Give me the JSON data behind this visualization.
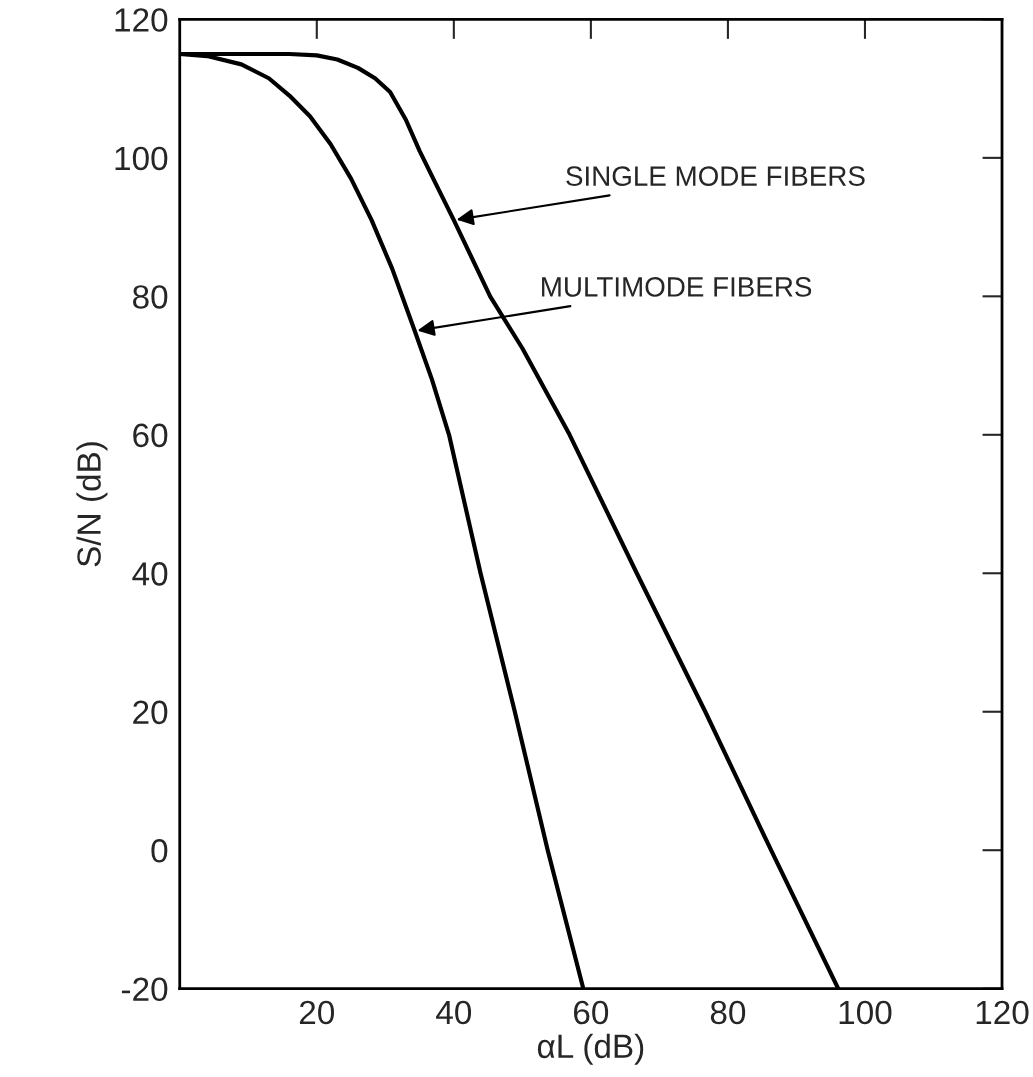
{
  "chart_data": {
    "type": "line",
    "xlabel": "αL (dB)",
    "ylabel": "S/N (dB)",
    "xlim": [
      0,
      120
    ],
    "xticks": [
      20,
      40,
      60,
      80,
      100,
      120
    ],
    "ylim": [
      -20,
      120
    ],
    "yticks": [
      -20,
      0,
      20,
      40,
      60,
      80,
      100,
      120
    ],
    "grid": false,
    "legend": false,
    "marker": "none",
    "line_style": "solid",
    "series": [
      {
        "color": "#000000",
        "x": [
          0,
          10,
          16,
          20,
          23,
          26,
          28.5,
          30.7,
          33,
          35,
          37.5,
          40,
          45.3,
          50,
          56.9,
          66.7,
          76.7,
          86.3,
          96.1
        ],
        "values": [
          115,
          115,
          115,
          114.8,
          114.2,
          113,
          111.5,
          109.5,
          105.5,
          101,
          96,
          91,
          80,
          72.5,
          60,
          40,
          20,
          0,
          -20
        ]
      },
      {
        "color": "#000000",
        "x": [
          0,
          4,
          9,
          13,
          16,
          19,
          22,
          25,
          28,
          31,
          34.3,
          36.8,
          39.3,
          43.9,
          48.9,
          53.7,
          58.9
        ],
        "values": [
          115,
          114.7,
          113.5,
          111.5,
          109,
          106,
          102,
          97,
          91,
          84,
          75,
          68,
          60,
          40,
          20,
          0,
          -20
        ]
      }
    ],
    "annotations": [
      {
        "text": "SINGLE MODE FIBERS",
        "x": 40,
        "y": 91
      },
      {
        "text": "MULTIMODE FIBERS",
        "x": 34.3,
        "y": 75
      }
    ]
  }
}
